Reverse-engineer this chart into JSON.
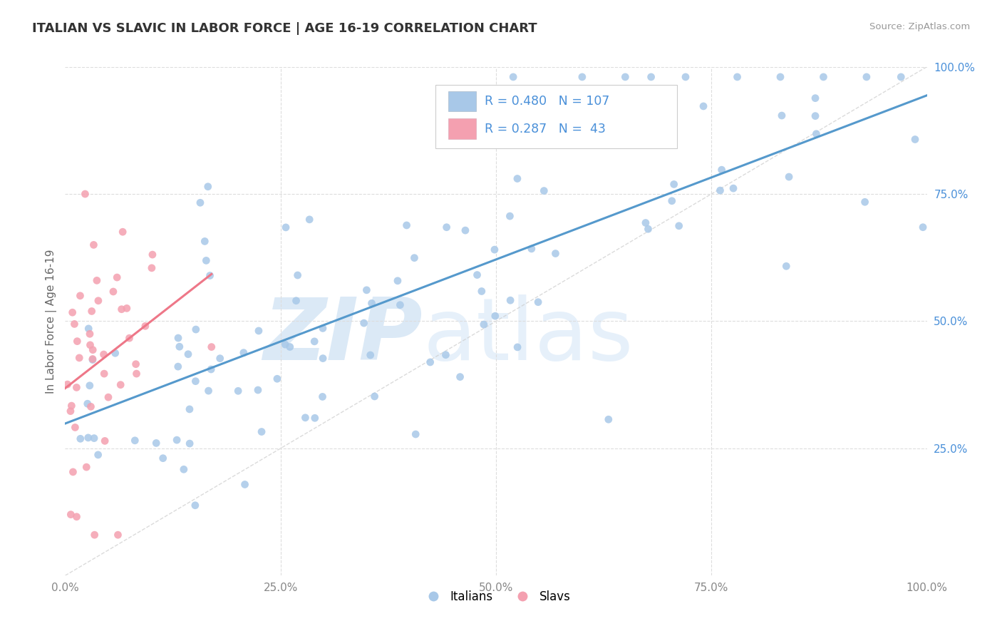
{
  "title": "ITALIAN VS SLAVIC IN LABOR FORCE | AGE 16-19 CORRELATION CHART",
  "source_text": "Source: ZipAtlas.com",
  "ylabel": "In Labor Force | Age 16-19",
  "watermark_zip": "ZIP",
  "watermark_atlas": "atlas",
  "legend_italian": "Italians",
  "legend_slavs": "Slavs",
  "R_italian": 0.48,
  "N_italian": 107,
  "R_slavs": 0.287,
  "N_slavs": 43,
  "color_italian": "#a8c8e8",
  "color_slavs": "#f4a0b0",
  "color_italian_line": "#5599cc",
  "color_slavs_line": "#ee7788",
  "xlim": [
    0,
    1
  ],
  "ylim": [
    0,
    1
  ],
  "xtick_positions": [
    0.0,
    0.25,
    0.5,
    0.75,
    1.0
  ],
  "xtick_labels": [
    "0.0%",
    "25.0%",
    "50.0%",
    "75.0%",
    "100.0%"
  ],
  "ytick_positions": [
    0.25,
    0.5,
    0.75,
    1.0
  ],
  "ytick_labels": [
    "25.0%",
    "50.0%",
    "75.0%",
    "100.0%"
  ],
  "background_color": "#ffffff",
  "grid_color": "#dddddd",
  "title_fontsize": 13,
  "axis_color": "#aaaaaa",
  "right_tick_color": "#4a90d9",
  "bottom_tick_color": "#888888"
}
